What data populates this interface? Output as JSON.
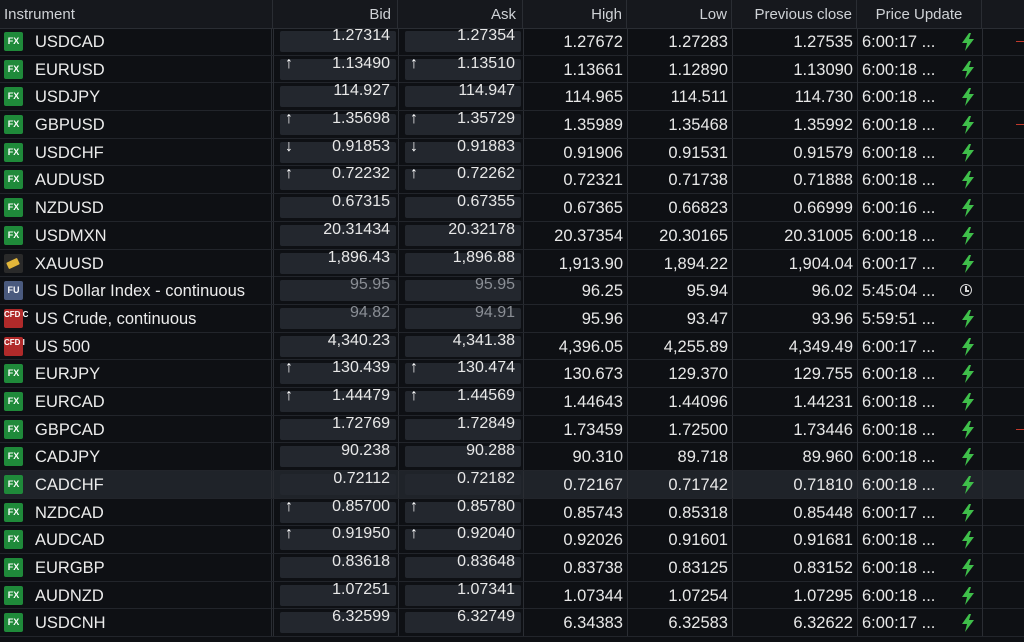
{
  "header": {
    "instrument": "Instrument",
    "bid": "Bid",
    "ask": "Ask",
    "high": "High",
    "low": "Low",
    "prev_close": "Previous close",
    "price_update": "Price Update"
  },
  "rows": [
    {
      "badge": "FX",
      "type": "fx",
      "name": "USDCAD",
      "bid": "1.27314",
      "ask": "1.27354",
      "high": "1.27672",
      "low": "1.27283",
      "prev": "1.27535",
      "time": "6:00:17 ...",
      "bid_arrow": "",
      "ask_arrow": "",
      "status": "bolt",
      "tick": true
    },
    {
      "badge": "FX",
      "type": "fx",
      "name": "EURUSD",
      "bid": "1.13490",
      "ask": "1.13510",
      "high": "1.13661",
      "low": "1.12890",
      "prev": "1.13090",
      "time": "6:00:18 ...",
      "bid_arrow": "up",
      "ask_arrow": "up",
      "status": "bolt",
      "tick": false
    },
    {
      "badge": "FX",
      "type": "fx",
      "name": "USDJPY",
      "bid": "114.927",
      "ask": "114.947",
      "high": "114.965",
      "low": "114.511",
      "prev": "114.730",
      "time": "6:00:18 ...",
      "bid_arrow": "",
      "ask_arrow": "",
      "status": "bolt",
      "tick": false
    },
    {
      "badge": "FX",
      "type": "fx",
      "name": "GBPUSD",
      "bid": "1.35698",
      "ask": "1.35729",
      "high": "1.35989",
      "low": "1.35468",
      "prev": "1.35992",
      "time": "6:00:18 ...",
      "bid_arrow": "up",
      "ask_arrow": "up",
      "status": "bolt",
      "tick": true
    },
    {
      "badge": "FX",
      "type": "fx",
      "name": "USDCHF",
      "bid": "0.91853",
      "ask": "0.91883",
      "high": "0.91906",
      "low": "0.91531",
      "prev": "0.91579",
      "time": "6:00:18 ...",
      "bid_arrow": "down",
      "ask_arrow": "down",
      "status": "bolt",
      "tick": false
    },
    {
      "badge": "FX",
      "type": "fx",
      "name": "AUDUSD",
      "bid": "0.72232",
      "ask": "0.72262",
      "high": "0.72321",
      "low": "0.71738",
      "prev": "0.71888",
      "time": "6:00:18 ...",
      "bid_arrow": "up",
      "ask_arrow": "up",
      "status": "bolt",
      "tick": false
    },
    {
      "badge": "FX",
      "type": "fx",
      "name": "NZDUSD",
      "bid": "0.67315",
      "ask": "0.67355",
      "high": "0.67365",
      "low": "0.66823",
      "prev": "0.66999",
      "time": "6:00:16 ...",
      "bid_arrow": "",
      "ask_arrow": "",
      "status": "bolt",
      "tick": false
    },
    {
      "badge": "FX",
      "type": "fx",
      "name": "USDMXN",
      "bid": "20.31434",
      "ask": "20.32178",
      "high": "20.37354",
      "low": "20.30165",
      "prev": "20.31005",
      "time": "6:00:18 ...",
      "bid_arrow": "",
      "ask_arrow": "",
      "status": "bolt",
      "tick": false
    },
    {
      "badge": "",
      "type": "gold",
      "name": "XAUUSD",
      "bid": "1,896.43",
      "ask": "1,896.88",
      "high": "1,913.90",
      "low": "1,894.22",
      "prev": "1,904.04",
      "time": "6:00:17 ...",
      "bid_arrow": "",
      "ask_arrow": "",
      "status": "bolt",
      "tick": false
    },
    {
      "badge": "FU",
      "type": "fu",
      "name": "US Dollar Index - continuous",
      "bid": "95.95",
      "ask": "95.95",
      "high": "96.25",
      "low": "95.94",
      "prev": "96.02",
      "time": "5:45:04 ...",
      "bid_arrow": "",
      "ask_arrow": "",
      "status": "clock",
      "stale": true,
      "tick": false
    },
    {
      "badge": "CFD C",
      "type": "cfd",
      "name": "US Crude, continuous",
      "bid": "94.82",
      "ask": "94.91",
      "high": "95.96",
      "low": "93.47",
      "prev": "93.96",
      "time": "5:59:51 ...",
      "bid_arrow": "",
      "ask_arrow": "",
      "status": "bolt",
      "stale": true,
      "tick": false
    },
    {
      "badge": "CFD I",
      "type": "cfd",
      "name": "US 500",
      "bid": "4,340.23",
      "ask": "4,341.38",
      "high": "4,396.05",
      "low": "4,255.89",
      "prev": "4,349.49",
      "time": "6:00:17 ...",
      "bid_arrow": "",
      "ask_arrow": "",
      "status": "bolt",
      "tick": false
    },
    {
      "badge": "FX",
      "type": "fx",
      "name": "EURJPY",
      "bid": "130.439",
      "ask": "130.474",
      "high": "130.673",
      "low": "129.370",
      "prev": "129.755",
      "time": "6:00:18 ...",
      "bid_arrow": "up",
      "ask_arrow": "up",
      "status": "bolt",
      "tick": false
    },
    {
      "badge": "FX",
      "type": "fx",
      "name": "EURCAD",
      "bid": "1.44479",
      "ask": "1.44569",
      "high": "1.44643",
      "low": "1.44096",
      "prev": "1.44231",
      "time": "6:00:18 ...",
      "bid_arrow": "up",
      "ask_arrow": "up",
      "status": "bolt",
      "tick": false
    },
    {
      "badge": "FX",
      "type": "fx",
      "name": "GBPCAD",
      "bid": "1.72769",
      "ask": "1.72849",
      "high": "1.73459",
      "low": "1.72500",
      "prev": "1.73446",
      "time": "6:00:18 ...",
      "bid_arrow": "",
      "ask_arrow": "",
      "status": "bolt",
      "tick": true
    },
    {
      "badge": "FX",
      "type": "fx",
      "name": "CADJPY",
      "bid": "90.238",
      "ask": "90.288",
      "high": "90.310",
      "low": "89.718",
      "prev": "89.960",
      "time": "6:00:18 ...",
      "bid_arrow": "",
      "ask_arrow": "",
      "status": "bolt",
      "tick": false
    },
    {
      "badge": "FX",
      "type": "fx",
      "name": "CADCHF",
      "bid": "0.72112",
      "ask": "0.72182",
      "high": "0.72167",
      "low": "0.71742",
      "prev": "0.71810",
      "time": "6:00:18 ...",
      "bid_arrow": "",
      "ask_arrow": "",
      "status": "bolt",
      "selected": true,
      "tick": false
    },
    {
      "badge": "FX",
      "type": "fx",
      "name": "NZDCAD",
      "bid": "0.85700",
      "ask": "0.85780",
      "high": "0.85743",
      "low": "0.85318",
      "prev": "0.85448",
      "time": "6:00:17 ...",
      "bid_arrow": "up",
      "ask_arrow": "up",
      "status": "bolt",
      "tick": false
    },
    {
      "badge": "FX",
      "type": "fx",
      "name": "AUDCAD",
      "bid": "0.91950",
      "ask": "0.92040",
      "high": "0.92026",
      "low": "0.91601",
      "prev": "0.91681",
      "time": "6:00:18 ...",
      "bid_arrow": "up",
      "ask_arrow": "up",
      "status": "bolt",
      "tick": false
    },
    {
      "badge": "FX",
      "type": "fx",
      "name": "EURGBP",
      "bid": "0.83618",
      "ask": "0.83648",
      "high": "0.83738",
      "low": "0.83125",
      "prev": "0.83152",
      "time": "6:00:18 ...",
      "bid_arrow": "",
      "ask_arrow": "",
      "status": "bolt",
      "tick": false
    },
    {
      "badge": "FX",
      "type": "fx",
      "name": "AUDNZD",
      "bid": "1.07251",
      "ask": "1.07341",
      "high": "1.07344",
      "low": "1.07254",
      "prev": "1.07295",
      "time": "6:00:18 ...",
      "bid_arrow": "",
      "ask_arrow": "",
      "status": "bolt",
      "tick": false
    },
    {
      "badge": "FX",
      "type": "fx",
      "name": "USDCNH",
      "bid": "6.32599",
      "ask": "6.32749",
      "high": "6.34383",
      "low": "6.32583",
      "prev": "6.32622",
      "time": "6:00:17 ...",
      "bid_arrow": "",
      "ask_arrow": "",
      "status": "bolt",
      "tick": false
    }
  ],
  "colors": {
    "bolt": "#3fbf4a",
    "badge_fx": "#1f8a3a",
    "background": "#0e1014"
  },
  "icons": {
    "bolt": "lightning-bolt-icon",
    "clock": "clock-icon",
    "up": "arrow-up-icon",
    "down": "arrow-down-icon"
  }
}
